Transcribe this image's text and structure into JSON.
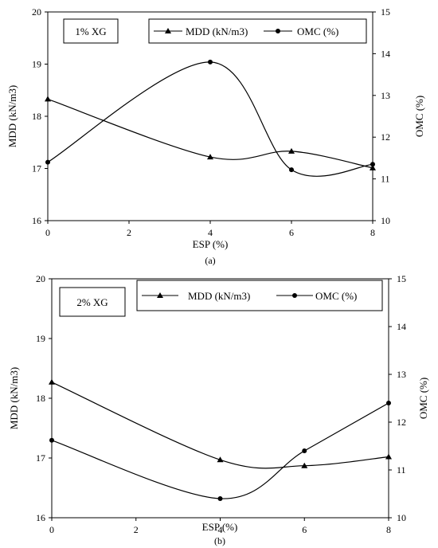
{
  "chart_data": [
    {
      "type": "line",
      "caption": "(a)",
      "annotation": "1% XG",
      "xlabel": "ESP (%)",
      "ylabel": "MDD (kN/m3)",
      "y2label": "OMC (%)",
      "xlim": [
        0,
        8
      ],
      "ylim": [
        16,
        20
      ],
      "y2lim": [
        10,
        15
      ],
      "xticks": [
        "0",
        "2",
        "4",
        "6",
        "8"
      ],
      "yticks": [
        "16",
        "17",
        "18",
        "19",
        "20"
      ],
      "y2ticks": [
        "10",
        "11",
        "12",
        "13",
        "14",
        "15"
      ],
      "x": [
        0,
        4,
        6,
        8
      ],
      "legend_position": "top-right",
      "series": [
        {
          "name": "MDD (kN/m3)",
          "axis": "left",
          "marker": "triangle",
          "values": [
            18.33,
            17.22,
            17.33,
            17.01
          ]
        },
        {
          "name": "OMC (%)",
          "axis": "right",
          "marker": "circle",
          "values": [
            11.4,
            13.8,
            11.22,
            11.35
          ]
        }
      ]
    },
    {
      "type": "line",
      "caption": "(b)",
      "annotation": "2% XG",
      "xlabel": "ESP (%)",
      "ylabel": "MDD (kN/m3)",
      "y2label": "OMC (%)",
      "xlim": [
        0,
        8
      ],
      "ylim": [
        16,
        20
      ],
      "y2lim": [
        10,
        15
      ],
      "xticks": [
        "0",
        "2",
        "4",
        "6",
        "8"
      ],
      "yticks": [
        "16",
        "17",
        "18",
        "19",
        "20"
      ],
      "y2ticks": [
        "10",
        "11",
        "12",
        "13",
        "14",
        "15"
      ],
      "x": [
        0,
        4,
        6,
        8
      ],
      "legend_position": "top-right",
      "series": [
        {
          "name": "MDD (kN/m3)",
          "axis": "left",
          "marker": "triangle",
          "values": [
            18.27,
            16.97,
            16.87,
            17.02
          ]
        },
        {
          "name": "OMC (%)",
          "axis": "right",
          "marker": "circle",
          "values": [
            11.62,
            10.4,
            11.4,
            12.4
          ]
        }
      ]
    }
  ]
}
